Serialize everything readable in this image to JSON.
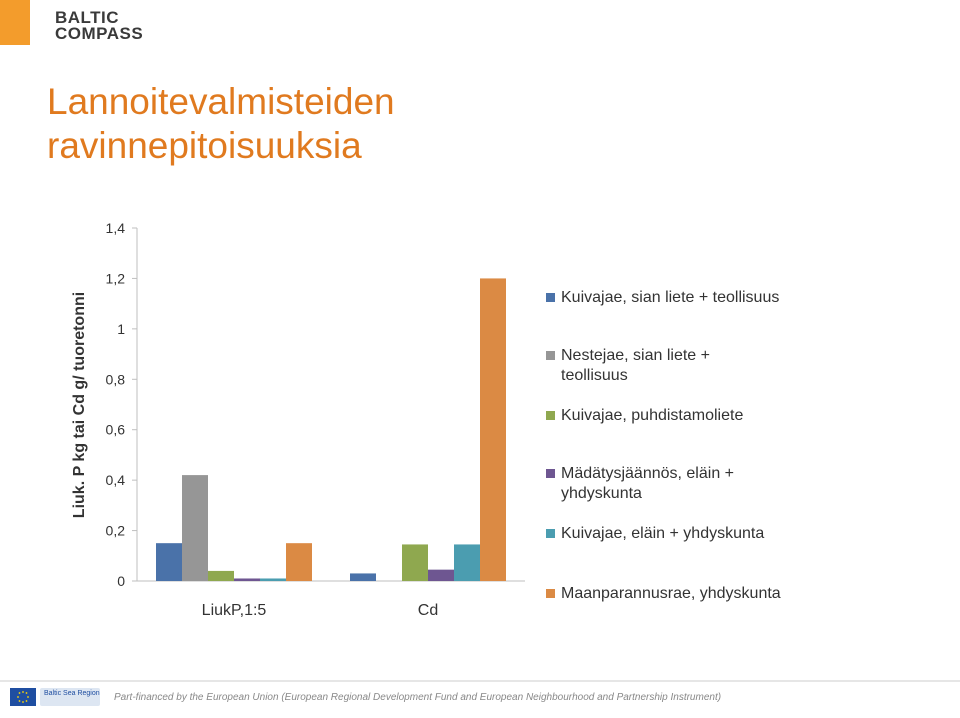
{
  "header": {
    "logo_line1": "BALTIC",
    "logo_line2": "COMPASS",
    "title_line1": "Lannoitevalmisteiden",
    "title_line2": "ravinnepitoisuuksia"
  },
  "footer": {
    "bsr_logo_text": "Baltic Sea Region",
    "text": "Part-financed by the European Union (European Regional Development Fund and European Neighbourhood and Partnership Instrument)"
  },
  "colors": {
    "accent": "#e07a1f",
    "orange_square": "#f39c2c"
  },
  "chart_data": {
    "type": "bar",
    "title": "",
    "xlabel": "",
    "ylabel": "Liuk. P kg tai Cd g/ tuoretonni",
    "ylim": [
      0,
      1.4
    ],
    "yticks": [
      "0",
      "0,2",
      "0,4",
      "0,6",
      "0,8",
      "1",
      "1,2",
      "1,4"
    ],
    "ytick_values": [
      0,
      0.2,
      0.4,
      0.6,
      0.8,
      1.0,
      1.2,
      1.4
    ],
    "categories": [
      "LiukP,1:5",
      "Cd"
    ],
    "grid": false,
    "legend_position": "right",
    "series": [
      {
        "name": "Kuivajae, sian liete + teollisuus",
        "color": "#4a72a9",
        "values": [
          0.15,
          0.03
        ]
      },
      {
        "name": "Nestejae, sian liete + teollisuus",
        "color": "#969696",
        "values": [
          0.42,
          0
        ]
      },
      {
        "name": "Kuivajae, puhdistamoliete",
        "color": "#8fa84f",
        "values": [
          0.04,
          0.145
        ]
      },
      {
        "name": "Mädätysjäännös, eläin + yhdyskunta",
        "color": "#6e5691",
        "values": [
          0.01,
          0.045
        ]
      },
      {
        "name": "Kuivajae, eläin + yhdyskunta",
        "color": "#4b9db0",
        "values": [
          0.01,
          0.145
        ]
      },
      {
        "name": "Maanparannusrae, yhdyskunta",
        "color": "#db8a44",
        "values": [
          0.15,
          1.2
        ]
      }
    ]
  }
}
